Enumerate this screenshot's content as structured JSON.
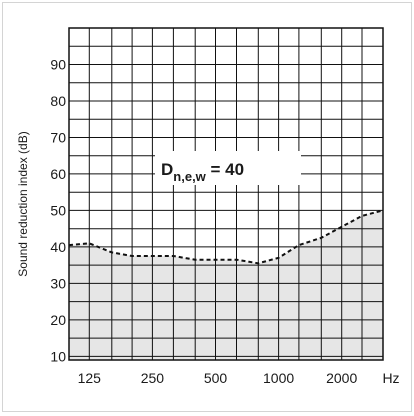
{
  "chart_data": {
    "type": "area",
    "ylabel": "Sound reduction index (dB)",
    "x_unit": "Hz",
    "x_tick_labels": [
      "125",
      "250",
      "500",
      "1000",
      "2000"
    ],
    "y_ticks": [
      10,
      20,
      30,
      40,
      50,
      60,
      70,
      80,
      90
    ],
    "ylim": [
      9,
      100
    ],
    "grid": true,
    "annotation": {
      "symbol": "D",
      "subscript": "n,e,w",
      "equals": " = 40"
    },
    "series": [
      {
        "x": [
          100,
          125,
          160,
          200,
          250,
          315,
          400,
          500,
          630,
          800,
          1000,
          1250,
          1600,
          2000,
          2500,
          3150
        ],
        "values": [
          40.5,
          41,
          38.5,
          37.5,
          37.5,
          37.5,
          36.5,
          36.5,
          36.5,
          35.5,
          37,
          40.5,
          42.5,
          45.5,
          48.5,
          50
        ]
      }
    ],
    "colors": {
      "fill": "#e6e6e6",
      "line": "#111111",
      "grid": "#111111"
    }
  }
}
